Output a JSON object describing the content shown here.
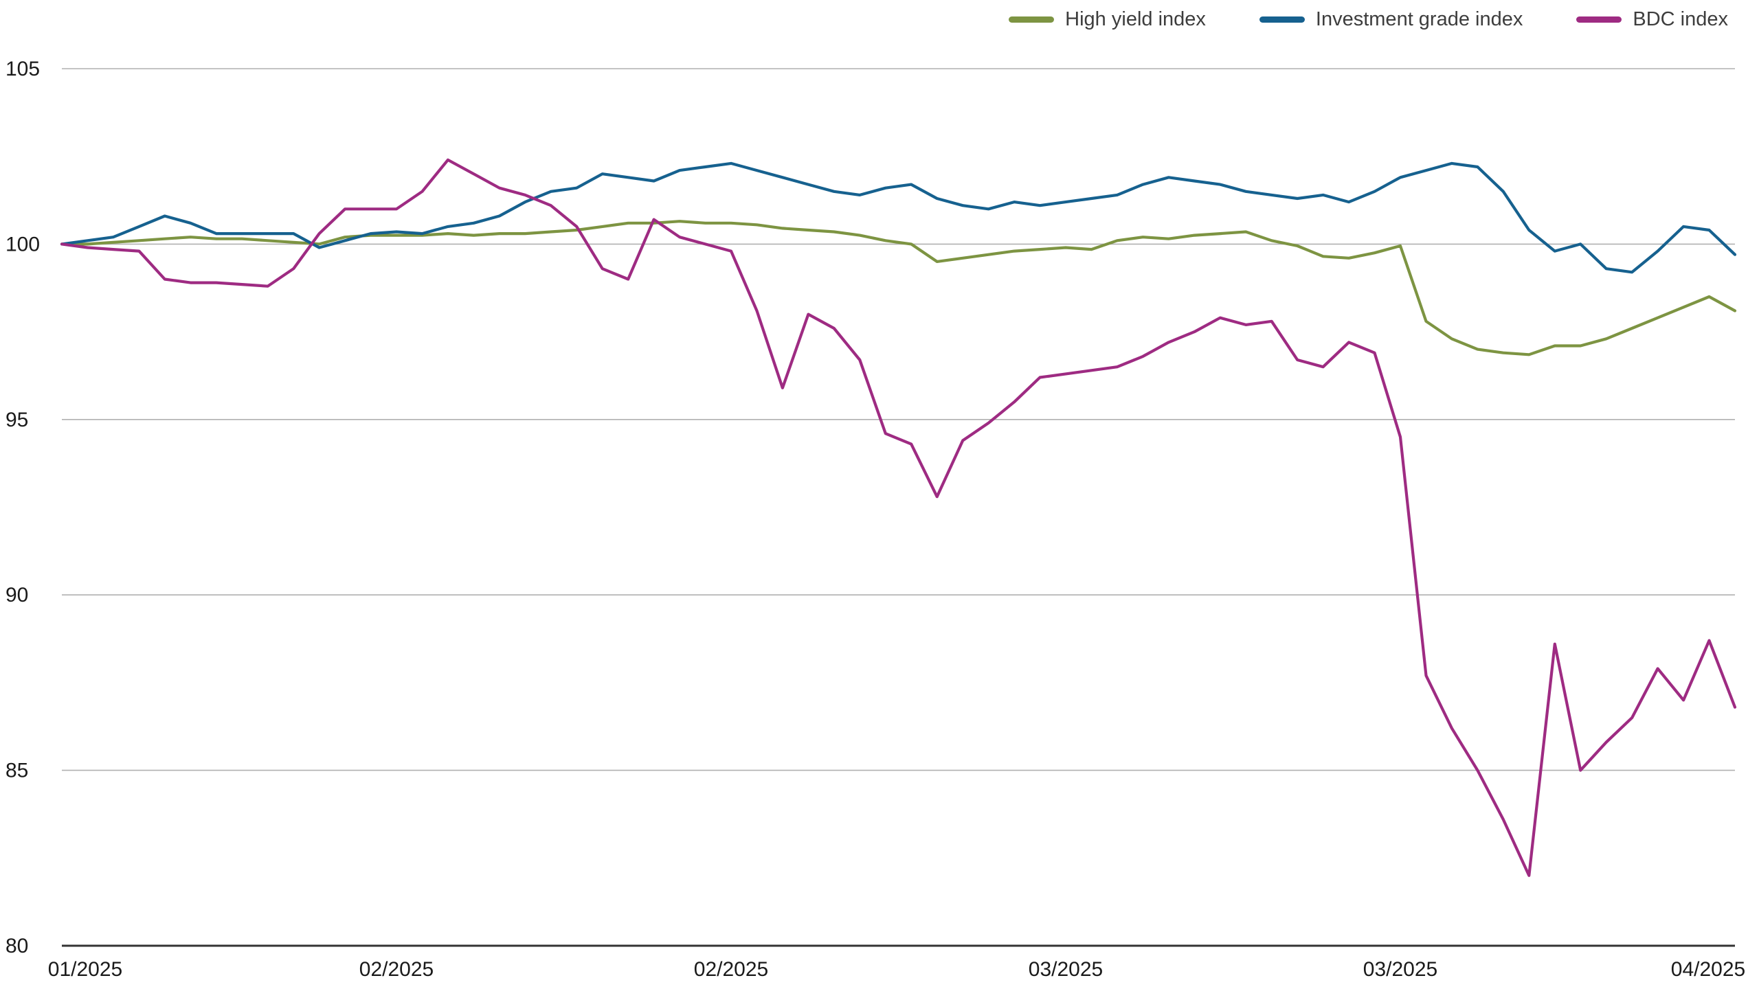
{
  "page": {
    "background": "#ffffff",
    "text_color": "#1a1a1a",
    "grid_color": "#b0b0b0",
    "axis_color": "#333333"
  },
  "chart_data": {
    "type": "line",
    "title": "",
    "xlabel": "",
    "ylabel": "",
    "ylim": [
      80,
      105
    ],
    "y_ticks": [
      80,
      85,
      90,
      95,
      100,
      105
    ],
    "x_tick_labels": [
      "01/2025",
      "02/2025",
      "02/2025",
      "03/2025",
      "03/2025",
      "04/2025"
    ],
    "grid": "horizontal",
    "legend_position": "top-right",
    "series": [
      {
        "name": "High yield index",
        "color": "#7d9442",
        "values": [
          100.0,
          100.0,
          100.05,
          100.1,
          100.15,
          100.2,
          100.15,
          100.15,
          100.1,
          100.05,
          100.0,
          100.2,
          100.25,
          100.25,
          100.25,
          100.3,
          100.25,
          100.3,
          100.3,
          100.35,
          100.4,
          100.5,
          100.6,
          100.6,
          100.65,
          100.6,
          100.6,
          100.55,
          100.45,
          100.4,
          100.35,
          100.25,
          100.1,
          100.0,
          99.5,
          99.6,
          99.7,
          99.8,
          99.85,
          99.9,
          99.85,
          100.1,
          100.2,
          100.15,
          100.25,
          100.3,
          100.35,
          100.1,
          99.95,
          99.65,
          99.6,
          99.75,
          99.95,
          97.8,
          97.3,
          97.0,
          96.9,
          96.85,
          97.1,
          97.1,
          97.3,
          97.6,
          97.9,
          98.2,
          98.5,
          98.1
        ]
      },
      {
        "name": "Investment grade index",
        "color": "#16618f",
        "values": [
          100.0,
          100.1,
          100.2,
          100.5,
          100.8,
          100.6,
          100.3,
          100.3,
          100.3,
          100.3,
          99.9,
          100.1,
          100.3,
          100.35,
          100.3,
          100.5,
          100.6,
          100.8,
          101.2,
          101.5,
          101.6,
          102.0,
          101.9,
          101.8,
          102.1,
          102.2,
          102.3,
          102.1,
          101.9,
          101.7,
          101.5,
          101.4,
          101.6,
          101.7,
          101.3,
          101.1,
          101.0,
          101.2,
          101.1,
          101.2,
          101.3,
          101.4,
          101.7,
          101.9,
          101.8,
          101.7,
          101.5,
          101.4,
          101.3,
          101.4,
          101.2,
          101.5,
          101.9,
          102.1,
          102.3,
          102.2,
          101.5,
          100.4,
          99.8,
          100.0,
          99.3,
          99.2,
          99.8,
          100.5,
          100.4,
          99.7
        ]
      },
      {
        "name": "BDC index",
        "color": "#9e2b82",
        "values": [
          100.0,
          99.9,
          99.85,
          99.8,
          99.0,
          98.9,
          98.9,
          98.85,
          98.8,
          99.3,
          100.3,
          101.0,
          101.0,
          101.0,
          101.5,
          102.4,
          102.0,
          101.6,
          101.4,
          101.1,
          100.5,
          99.3,
          99.0,
          100.7,
          100.2,
          100.0,
          99.8,
          98.1,
          95.9,
          98.0,
          97.6,
          96.7,
          94.6,
          94.3,
          92.8,
          94.4,
          94.9,
          95.5,
          96.2,
          96.3,
          96.4,
          96.5,
          96.8,
          97.2,
          97.5,
          97.9,
          97.7,
          97.8,
          96.7,
          96.5,
          97.2,
          96.9,
          94.5,
          87.7,
          86.2,
          85.0,
          83.6,
          82.0,
          88.6,
          85.0,
          85.8,
          86.5,
          87.9,
          87.0,
          88.7,
          86.8
        ]
      }
    ]
  }
}
